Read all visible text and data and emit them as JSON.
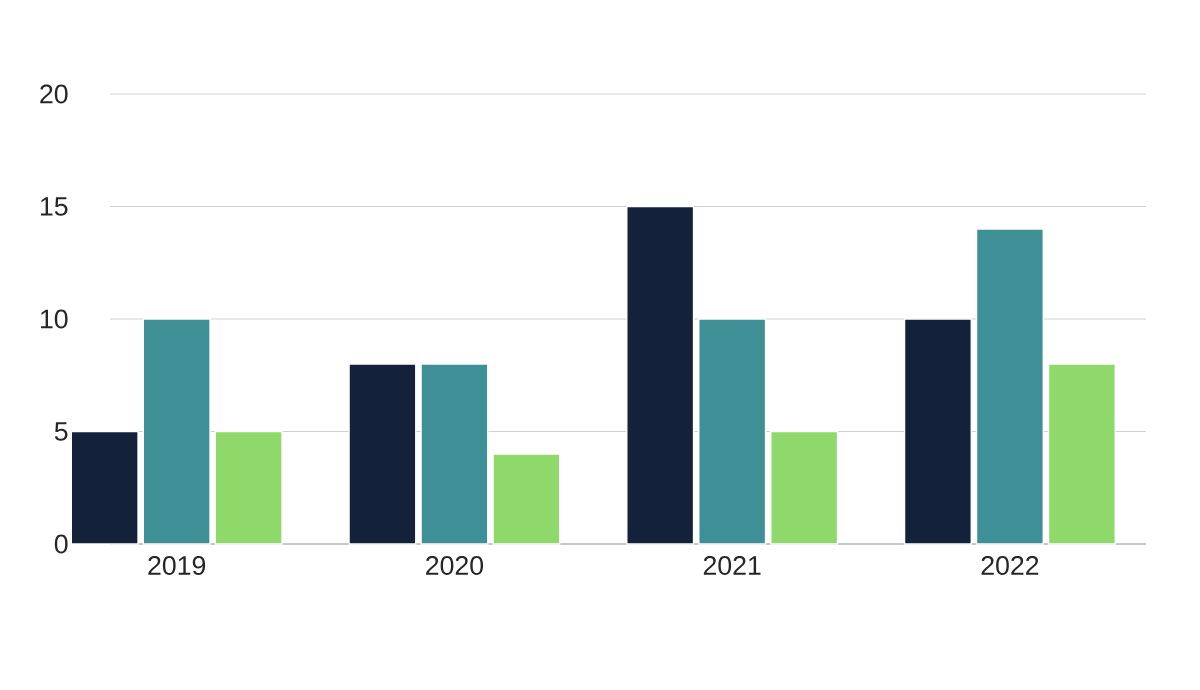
{
  "chart_data": {
    "type": "bar",
    "categories": [
      "2019",
      "2020",
      "2021",
      "2022"
    ],
    "series": [
      {
        "color": "#13223a",
        "values": [
          5,
          8,
          15,
          10
        ]
      },
      {
        "color": "#3f8f96",
        "values": [
          10,
          8,
          10,
          14
        ]
      },
      {
        "color": "#8fd86a",
        "values": [
          5,
          4,
          5,
          8
        ]
      }
    ],
    "ylim": [
      0,
      20
    ],
    "yticks": [
      0,
      5,
      10,
      15,
      20
    ],
    "grid": "y"
  }
}
